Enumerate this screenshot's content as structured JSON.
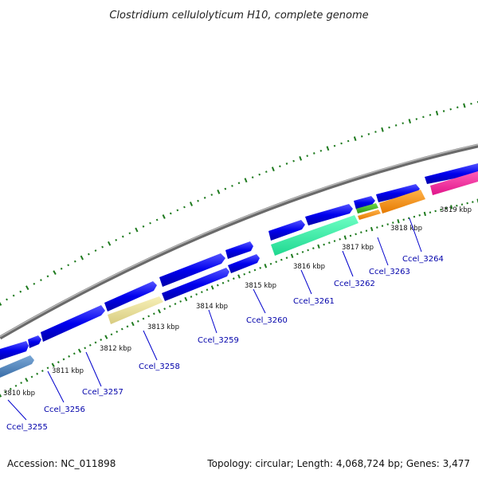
{
  "title": "Clostridium cellulolyticum H10, complete genome",
  "footer": {
    "accession": "Accession: NC_011898",
    "summary": "Topology: circular; Length: 4,068,724 bp; Genes: 3,477"
  },
  "colors": {
    "backbone": "#888888",
    "cds": "#0000ee",
    "tick": "#1e7a1e",
    "label": "#0000aa"
  },
  "ticks": [
    "3810 kbp",
    "3811 kbp",
    "3812 kbp",
    "3813 kbp",
    "3814 kbp",
    "3815 kbp",
    "3816 kbp",
    "3817 kbp",
    "3818 kbp",
    "3819 kbp"
  ],
  "gene_labels": [
    "Ccel_3255",
    "Ccel_3256",
    "Ccel_3257",
    "Ccel_3258",
    "Ccel_3259",
    "Ccel_3260",
    "Ccel_3261",
    "Ccel_3262",
    "Ccel_3263",
    "Ccel_3264"
  ]
}
